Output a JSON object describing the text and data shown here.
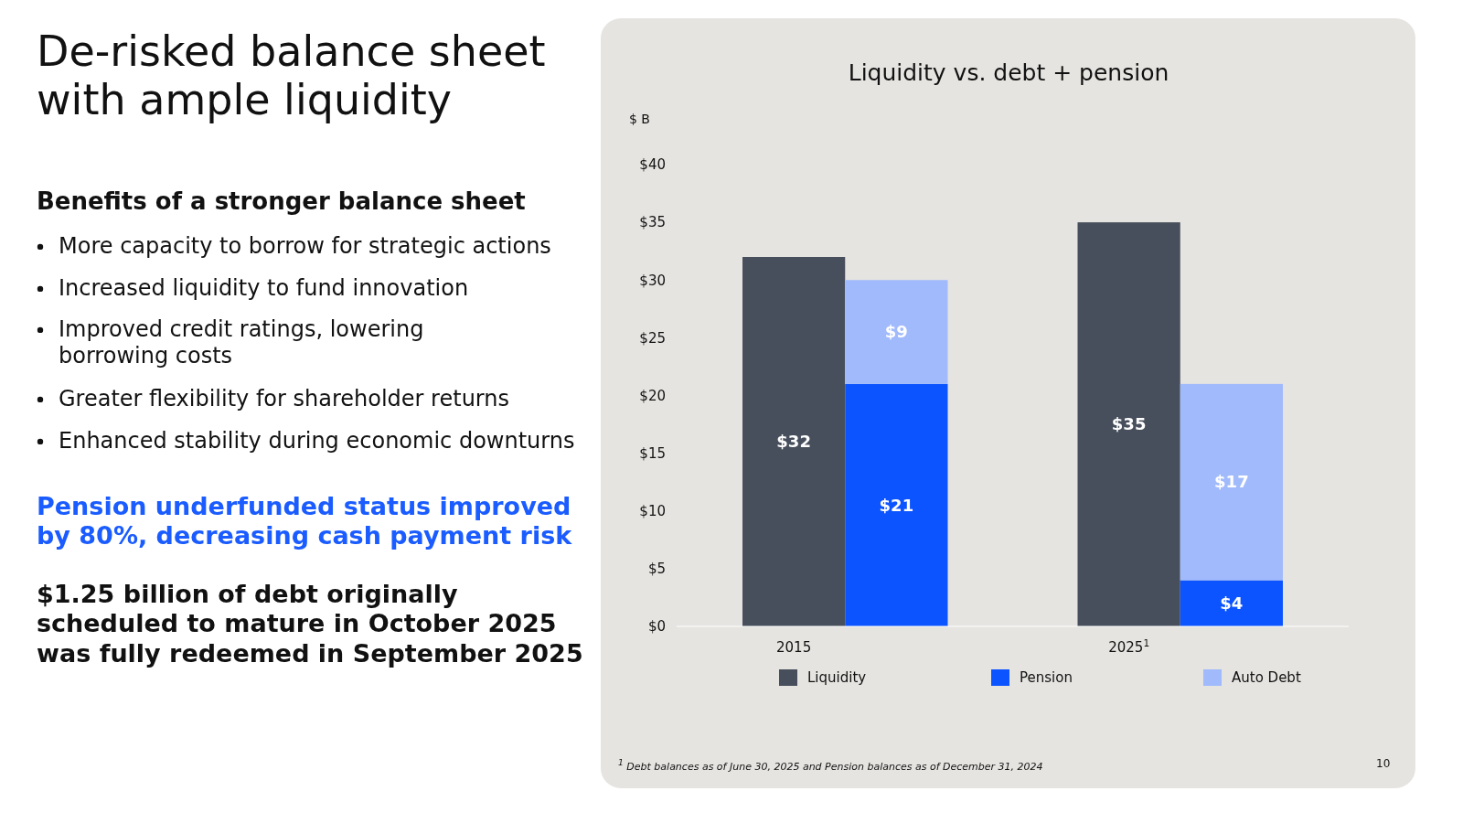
{
  "chart_data": {
    "type": "bar",
    "title": "Liquidity vs. debt + pension",
    "ylabel": "$ B",
    "categories": [
      "2015",
      null,
      "2025$^{1}$",
      null
    ],
    "stacked": true,
    "series": [
      {
        "name": "Liquidity",
        "color": "#474f5c",
        "values": [
          32,
          null,
          35,
          null
        ],
        "value_labels": [
          "$32",
          null,
          "$35",
          null
        ]
      },
      {
        "name": "Pension",
        "color": "#0c54ff",
        "values": [
          null,
          21,
          null,
          4
        ],
        "value_labels": [
          null,
          "$21",
          null,
          "$4"
        ]
      },
      {
        "name": "Auto Debt",
        "color": "#a0bafc",
        "values": [
          null,
          9,
          null,
          17
        ],
        "value_labels": [
          null,
          "$9",
          null,
          "$17"
        ]
      }
    ],
    "ylim": [
      0,
      40
    ],
    "yticks": [
      {
        "value": 0,
        "label": "$0"
      },
      {
        "value": 5,
        "label": "$5"
      },
      {
        "value": 10,
        "label": "$10"
      },
      {
        "value": 15,
        "label": "$15"
      },
      {
        "value": 20,
        "label": "$20"
      },
      {
        "value": 25,
        "label": "$25"
      },
      {
        "value": 30,
        "label": "$30"
      },
      {
        "value": 35,
        "label": "$35"
      },
      {
        "value": 40,
        "label": "$40"
      }
    ],
    "grid": false,
    "legend": "bottom",
    "annotations": [
      "De-risked balance sheet with ample liquidity",
      "Benefits of a stronger balance sheet",
      "More capacity to borrow for strategic actions",
      "Increased liquidity to fund innovation",
      "Improved credit ratings, lowering borrowing costs",
      "Greater flexibility for shareholder returns",
      "Enhanced stability during economic downturns",
      "Pension underfunded status improved by 80%, decreasing cash payment risk",
      "$1.25 billion of debt originally scheduled to mature in October 2025 was fully redeemed in September 2025",
      "$^{1}$ Debt balances as of June 30, 2025 and Pension balances as of December 31, 2024",
      "10"
    ]
  }
}
